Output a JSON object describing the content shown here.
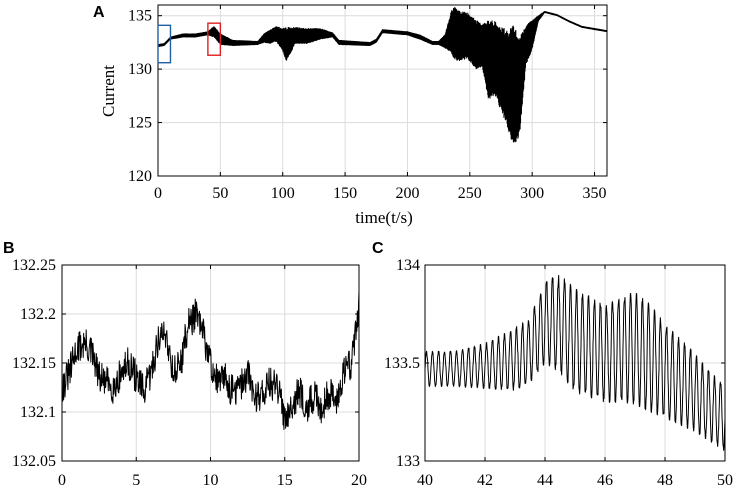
{
  "chart_data": [
    {
      "panel": "A",
      "type": "line",
      "xlabel": "time(t/s)",
      "ylabel": "Current",
      "xlim": [
        0,
        360
      ],
      "ylim": [
        120,
        136
      ],
      "xticks": [
        0,
        50,
        100,
        150,
        200,
        250,
        300,
        350
      ],
      "yticks": [
        120,
        125,
        130,
        135
      ],
      "grid": true,
      "highlight_boxes": [
        {
          "x": [
            0,
            10
          ],
          "y": [
            130.6,
            134.1
          ],
          "color": "#1f5fa5"
        },
        {
          "x": [
            40,
            50
          ],
          "y": [
            131.3,
            134.3
          ],
          "color": "#e02020"
        }
      ],
      "envelope_upper": [
        [
          0,
          132.3
        ],
        [
          5,
          132.4
        ],
        [
          10,
          133.0
        ],
        [
          20,
          133.3
        ],
        [
          30,
          133.3
        ],
        [
          40,
          133.5
        ],
        [
          45,
          134.0
        ],
        [
          50,
          133.3
        ],
        [
          60,
          132.7
        ],
        [
          80,
          132.6
        ],
        [
          85,
          133.3
        ],
        [
          90,
          133.7
        ],
        [
          95,
          134.0
        ],
        [
          100,
          133.8
        ],
        [
          103,
          133.9
        ],
        [
          110,
          133.9
        ],
        [
          120,
          133.8
        ],
        [
          130,
          133.8
        ],
        [
          140,
          133.4
        ],
        [
          145,
          132.7
        ],
        [
          170,
          132.5
        ],
        [
          175,
          132.8
        ],
        [
          180,
          133.7
        ],
        [
          190,
          133.6
        ],
        [
          200,
          133.5
        ],
        [
          210,
          133.2
        ],
        [
          220,
          132.6
        ],
        [
          225,
          132.6
        ],
        [
          230,
          133.2
        ],
        [
          235,
          135.4
        ],
        [
          237,
          135.9
        ],
        [
          240,
          135.5
        ],
        [
          248,
          135.3
        ],
        [
          255,
          134.6
        ],
        [
          260,
          134.2
        ],
        [
          265,
          134.6
        ],
        [
          270,
          134.5
        ],
        [
          280,
          133.6
        ],
        [
          285,
          134.1
        ],
        [
          290,
          133.0
        ],
        [
          295,
          134.1
        ],
        [
          300,
          134.6
        ],
        [
          305,
          135.0
        ],
        [
          310,
          135.4
        ],
        [
          320,
          135.1
        ],
        [
          330,
          134.5
        ],
        [
          340,
          134.0
        ],
        [
          350,
          133.8
        ],
        [
          360,
          133.6
        ]
      ],
      "envelope_lower": [
        [
          0,
          132.1
        ],
        [
          5,
          132.2
        ],
        [
          10,
          132.8
        ],
        [
          20,
          133.0
        ],
        [
          30,
          133.0
        ],
        [
          40,
          133.2
        ],
        [
          45,
          133.0
        ],
        [
          50,
          132.3
        ],
        [
          60,
          132.2
        ],
        [
          80,
          132.3
        ],
        [
          85,
          132.5
        ],
        [
          90,
          132.4
        ],
        [
          95,
          132.6
        ],
        [
          100,
          131.7
        ],
        [
          103,
          130.7
        ],
        [
          110,
          132.4
        ],
        [
          120,
          132.4
        ],
        [
          130,
          132.8
        ],
        [
          140,
          133.0
        ],
        [
          145,
          132.3
        ],
        [
          170,
          132.2
        ],
        [
          175,
          132.5
        ],
        [
          180,
          133.4
        ],
        [
          190,
          133.3
        ],
        [
          200,
          133.2
        ],
        [
          210,
          132.8
        ],
        [
          220,
          132.3
        ],
        [
          225,
          132.3
        ],
        [
          230,
          132.0
        ],
        [
          235,
          131.5
        ],
        [
          237,
          131.0
        ],
        [
          240,
          130.7
        ],
        [
          248,
          131.0
        ],
        [
          255,
          130.0
        ],
        [
          260,
          130.2
        ],
        [
          265,
          127.0
        ],
        [
          270,
          127.6
        ],
        [
          280,
          124.6
        ],
        [
          285,
          122.7
        ],
        [
          290,
          123.8
        ],
        [
          295,
          130.4
        ],
        [
          300,
          131.8
        ],
        [
          305,
          134.5
        ],
        [
          310,
          135.3
        ],
        [
          320,
          135.0
        ],
        [
          330,
          134.4
        ],
        [
          340,
          133.9
        ],
        [
          350,
          133.7
        ],
        [
          360,
          133.5
        ]
      ]
    },
    {
      "panel": "B",
      "type": "line",
      "xlabel": "",
      "ylabel": "",
      "xlim": [
        0,
        20
      ],
      "ylim": [
        132.05,
        132.25
      ],
      "xticks": [
        0,
        5,
        10,
        15,
        20
      ],
      "yticks": [
        132.05,
        132.1,
        132.15,
        132.2,
        132.25
      ],
      "ytick_labels": [
        "132.05",
        "132.1",
        "132.15",
        "132.2",
        "132.25"
      ],
      "grid": true,
      "x": [
        0.0,
        0.5,
        1.0,
        1.5,
        2.0,
        2.5,
        3.0,
        3.5,
        4.0,
        4.5,
        5.0,
        5.5,
        6.0,
        6.5,
        7.0,
        7.5,
        8.0,
        8.5,
        9.0,
        9.5,
        10.0,
        10.5,
        11.0,
        11.5,
        12.0,
        12.5,
        13.0,
        13.5,
        14.0,
        14.5,
        15.0,
        15.5,
        16.0,
        16.5,
        17.0,
        17.5,
        18.0,
        18.5,
        19.0,
        19.5,
        20.0
      ],
      "y": [
        132.125,
        132.14,
        132.165,
        132.17,
        132.16,
        132.135,
        132.13,
        132.125,
        132.14,
        132.15,
        132.135,
        132.12,
        132.14,
        132.175,
        132.18,
        132.14,
        132.15,
        132.19,
        132.2,
        132.18,
        132.15,
        132.13,
        132.135,
        132.12,
        132.125,
        132.14,
        132.115,
        132.12,
        132.13,
        132.125,
        132.095,
        132.11,
        132.12,
        132.105,
        132.115,
        132.105,
        132.12,
        132.11,
        132.145,
        132.15,
        132.21
      ],
      "noise": 0.017
    },
    {
      "panel": "C",
      "type": "line",
      "xlabel": "",
      "ylabel": "",
      "xlim": [
        40,
        50
      ],
      "ylim": [
        133,
        134
      ],
      "xticks": [
        40,
        42,
        44,
        46,
        48,
        50
      ],
      "yticks": [
        133,
        133.5,
        134
      ],
      "ytick_labels": [
        "133",
        "133.5",
        "134"
      ],
      "grid": true,
      "envelope_upper": [
        [
          40,
          133.56
        ],
        [
          41,
          133.56
        ],
        [
          42,
          133.6
        ],
        [
          43,
          133.68
        ],
        [
          43.5,
          133.73
        ],
        [
          44,
          133.92
        ],
        [
          44.5,
          133.95
        ],
        [
          45,
          133.88
        ],
        [
          46,
          133.8
        ],
        [
          46.5,
          133.84
        ],
        [
          47,
          133.86
        ],
        [
          47.5,
          133.8
        ],
        [
          48,
          133.7
        ],
        [
          49,
          133.55
        ],
        [
          49.5,
          133.45
        ],
        [
          50,
          133.4
        ]
      ],
      "envelope_lower": [
        [
          40,
          133.38
        ],
        [
          41,
          133.38
        ],
        [
          42,
          133.37
        ],
        [
          43,
          133.36
        ],
        [
          43.5,
          133.4
        ],
        [
          44,
          133.5
        ],
        [
          44.5,
          133.45
        ],
        [
          45,
          133.35
        ],
        [
          46,
          133.3
        ],
        [
          46.5,
          133.3
        ],
        [
          47,
          133.29
        ],
        [
          47.5,
          133.25
        ],
        [
          48,
          133.22
        ],
        [
          49,
          133.15
        ],
        [
          49.5,
          133.1
        ],
        [
          50,
          133.05
        ]
      ],
      "cycles_per_unit": 5
    }
  ],
  "panel_labels": [
    "A",
    "B",
    "C"
  ],
  "colors": {
    "box_blue": "#1f5fa5",
    "box_red": "#e02020",
    "trace": "#000000",
    "grid": "#dcdcdc"
  }
}
